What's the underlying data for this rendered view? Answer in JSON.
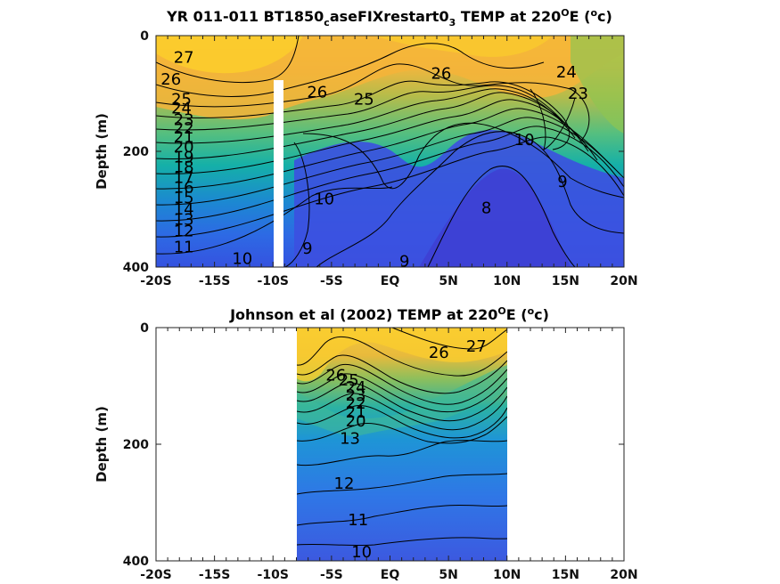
{
  "chart_data": [
    {
      "type": "heatmap",
      "title": "YR 011-011 BT1850",
      "title_sub": "c",
      "title_mid": "aseFIXrestart0",
      "title_sub2": "3",
      "title_tail": " TEMP at 220",
      "title_sup": "O",
      "title_end": "E (",
      "title_sup2": "o",
      "title_close": "c)",
      "ylabel": "Depth (m)",
      "xlabel": "",
      "xlim": [
        -20,
        20
      ],
      "ylim": [
        400,
        0
      ],
      "xticks": [
        -20,
        -15,
        -10,
        -5,
        0,
        5,
        10,
        15,
        20
      ],
      "xtick_labels": [
        "-20S",
        "-15S",
        "-10S",
        "-5S",
        "EQ",
        "5N",
        "10N",
        "15N",
        "20N"
      ],
      "yticks": [
        0,
        200,
        400
      ],
      "ytick_labels": [
        "0",
        "200",
        "400"
      ],
      "colormap": "parula",
      "grid": false,
      "contours": [
        {
          "level": 27,
          "x": -18.5,
          "y": 38
        },
        {
          "level": 26,
          "x": -19.6,
          "y": 75
        },
        {
          "level": 26,
          "x": -7.1,
          "y": 98
        },
        {
          "level": 26,
          "x": 3.5,
          "y": 65
        },
        {
          "level": 25,
          "x": -18.7,
          "y": 110
        },
        {
          "level": 25,
          "x": -3.1,
          "y": 110
        },
        {
          "level": 24,
          "x": -18.7,
          "y": 125
        },
        {
          "level": 24,
          "x": 14.2,
          "y": 63
        },
        {
          "level": 23,
          "x": -18.5,
          "y": 145
        },
        {
          "level": 23,
          "x": 15.2,
          "y": 100
        },
        {
          "level": 22,
          "x": -18.5,
          "y": 160
        },
        {
          "level": 21,
          "x": -18.5,
          "y": 175
        },
        {
          "level": 20,
          "x": -18.5,
          "y": 192
        },
        {
          "level": 19,
          "x": -18.5,
          "y": 210
        },
        {
          "level": 18,
          "x": -18.5,
          "y": 227
        },
        {
          "level": 17,
          "x": -18.5,
          "y": 245
        },
        {
          "level": 16,
          "x": -18.5,
          "y": 262
        },
        {
          "level": 15,
          "x": -18.5,
          "y": 280
        },
        {
          "level": 14,
          "x": -18.5,
          "y": 300
        },
        {
          "level": 13,
          "x": -18.5,
          "y": 318
        },
        {
          "level": 12,
          "x": -18.5,
          "y": 338
        },
        {
          "level": 11,
          "x": -18.5,
          "y": 365
        },
        {
          "level": 10,
          "x": -13.5,
          "y": 385
        },
        {
          "level": 10,
          "x": -6.5,
          "y": 282
        },
        {
          "level": 10,
          "x": 10.6,
          "y": 180
        },
        {
          "level": 9,
          "x": -7.5,
          "y": 368
        },
        {
          "level": 9,
          "x": 0.8,
          "y": 390
        },
        {
          "level": 9,
          "x": 14.3,
          "y": 252
        },
        {
          "level": 8,
          "x": 7.8,
          "y": 298
        }
      ]
    },
    {
      "type": "heatmap",
      "title": "Johnson et al (2002) TEMP at 220",
      "title_sup": "O",
      "title_end": "E (",
      "title_sup2": "o",
      "title_close": "c)",
      "ylabel": "Depth (m)",
      "xlabel": "",
      "xlim": [
        -20,
        20
      ],
      "ylim": [
        400,
        0
      ],
      "data_extent_x": [
        -8,
        10
      ],
      "xticks": [
        -20,
        -15,
        -10,
        -5,
        0,
        5,
        10,
        15,
        20
      ],
      "xtick_labels": [
        "-20S",
        "-15S",
        "-10S",
        "-5S",
        "EQ",
        "5N",
        "10N",
        "15N",
        "20N"
      ],
      "yticks": [
        0,
        200,
        400
      ],
      "ytick_labels": [
        "0",
        "200",
        "400"
      ],
      "colormap": "parula",
      "grid": false,
      "contours": [
        {
          "level": 27,
          "x": 6.5,
          "y": 32
        },
        {
          "level": 26,
          "x": 3.3,
          "y": 43
        },
        {
          "level": 26,
          "x": -5.5,
          "y": 82
        },
        {
          "level": 25,
          "x": -4.4,
          "y": 90
        },
        {
          "level": 24,
          "x": -3.8,
          "y": 102
        },
        {
          "level": 23,
          "x": -3.8,
          "y": 116
        },
        {
          "level": 22,
          "x": -3.8,
          "y": 130
        },
        {
          "level": 21,
          "x": -3.8,
          "y": 145
        },
        {
          "level": 20,
          "x": -3.8,
          "y": 160
        },
        {
          "level": 13,
          "x": -4.3,
          "y": 190
        },
        {
          "level": 12,
          "x": -4.8,
          "y": 267
        },
        {
          "level": 11,
          "x": -3.6,
          "y": 330
        },
        {
          "level": 10,
          "x": -3.3,
          "y": 385
        }
      ]
    }
  ]
}
